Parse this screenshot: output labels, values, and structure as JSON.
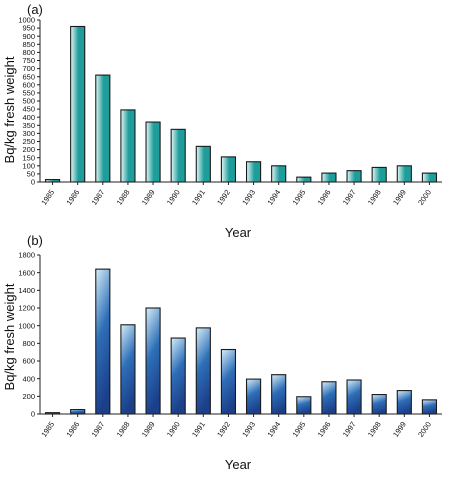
{
  "chart_data": [
    {
      "type": "bar",
      "panel_label": "(a)",
      "title": "",
      "xlabel": "Year",
      "ylabel": "Bq/kg fresh weight",
      "categories": [
        "1985",
        "1986",
        "1987",
        "1988",
        "1989",
        "1990",
        "1991",
        "1992",
        "1993",
        "1994",
        "1995",
        "1996",
        "1997",
        "1998",
        "1999",
        "2000"
      ],
      "values": [
        15,
        960,
        660,
        445,
        370,
        325,
        220,
        155,
        125,
        100,
        30,
        55,
        70,
        90,
        100,
        55
      ],
      "ylim": [
        0,
        1000
      ],
      "yticks": [
        0,
        50,
        100,
        150,
        200,
        250,
        300,
        350,
        400,
        450,
        500,
        550,
        600,
        650,
        700,
        750,
        800,
        850,
        900,
        950,
        1000
      ],
      "grid": false,
      "bar_color_light": "#e2f7f5",
      "bar_color_dark": "#1f9d9b"
    },
    {
      "type": "bar",
      "panel_label": "(b)",
      "title": "",
      "xlabel": "Year",
      "ylabel": "Bq/kg fresh weight",
      "categories": [
        "1985",
        "1986",
        "1987",
        "1988",
        "1989",
        "1990",
        "1991",
        "1992",
        "1993",
        "1994",
        "1995",
        "1996",
        "1997",
        "1998",
        "1999",
        "2000"
      ],
      "values": [
        15,
        50,
        1640,
        1010,
        1200,
        860,
        975,
        730,
        395,
        445,
        195,
        365,
        385,
        220,
        265,
        160
      ],
      "ylim": [
        0,
        1800
      ],
      "yticks": [
        0,
        200,
        400,
        600,
        800,
        1000,
        1200,
        1400,
        1600,
        1800
      ],
      "grid": false,
      "bar_color_light": "#d7eef8",
      "bar_color_dark": "#2e6fb8"
    }
  ]
}
